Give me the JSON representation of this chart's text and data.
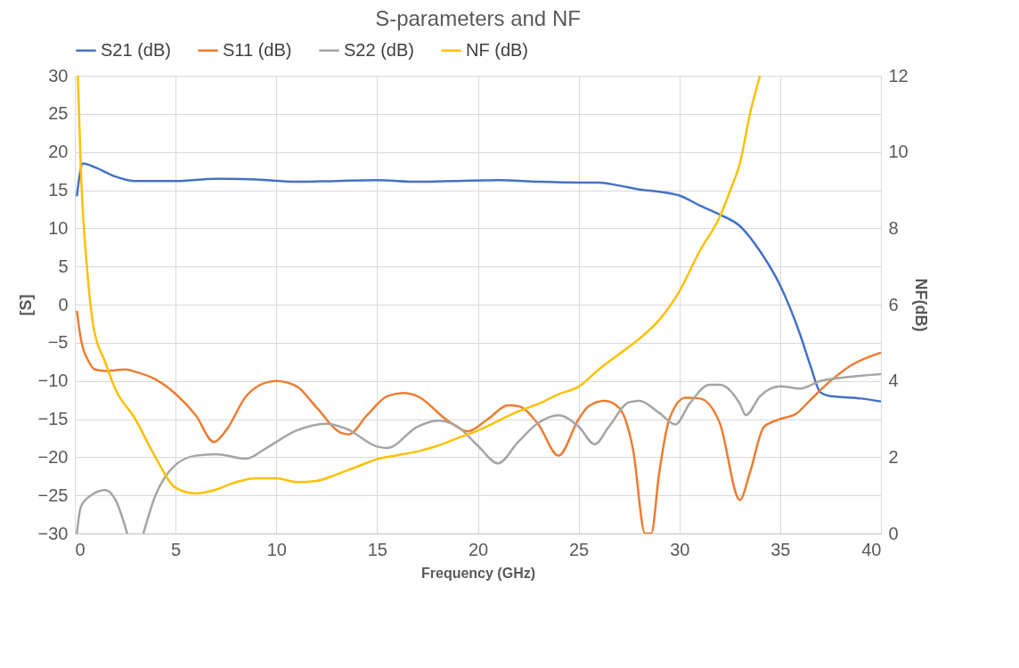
{
  "chart_data": {
    "type": "line",
    "title": "S-parameters and NF",
    "xlabel": "Frequency (GHz)",
    "ylabel": "[S]",
    "y2label": "NF(dB)",
    "xlim": [
      0,
      40
    ],
    "xticks": [
      0,
      5,
      10,
      15,
      20,
      25,
      30,
      35,
      40
    ],
    "ylim": [
      -30,
      30
    ],
    "yticks": [
      -30,
      -25,
      -20,
      -15,
      -10,
      -5,
      0,
      5,
      10,
      15,
      20,
      25,
      30
    ],
    "y2lim": [
      0,
      12
    ],
    "y2ticks": [
      0,
      2,
      4,
      6,
      8,
      10,
      12
    ],
    "grid": true,
    "legend": "top",
    "marker": "none",
    "line_style": "solid",
    "series": [
      {
        "name": "S21 (dB)",
        "color": "#4472c4",
        "x": [
          0.1,
          0.4,
          1,
          2,
          3,
          5,
          7,
          9,
          11,
          13,
          15,
          17,
          19,
          21,
          23,
          25,
          26,
          27,
          28,
          29,
          30,
          31,
          32,
          33,
          34,
          35,
          36,
          36.5,
          37,
          37.5,
          38,
          39,
          40
        ],
        "values": [
          14.2,
          18.5,
          18,
          16.8,
          16.2,
          16.2,
          16.5,
          16.4,
          16.1,
          16.2,
          16.3,
          16.1,
          16.2,
          16.3,
          16.1,
          16,
          16,
          15.6,
          15.1,
          14.8,
          14.3,
          13,
          11.8,
          10.3,
          7,
          2.5,
          -4,
          -8,
          -11.5,
          -12,
          -12.1,
          -12.3,
          -12.7
        ]
      },
      {
        "name": "S11 (dB)",
        "color": "#ed7d31",
        "x": [
          0.1,
          0.3,
          0.7,
          1,
          1.5,
          2,
          2.5,
          3,
          4,
          5,
          6,
          6.9,
          7.5,
          8.5,
          9.5,
          10,
          11,
          12,
          13.2,
          13.6,
          14.5,
          15.5,
          16.3,
          17,
          18.5,
          19.5,
          20.5,
          21.5,
          22,
          23,
          24,
          25,
          25.5,
          26.3,
          27,
          27.7,
          28.3,
          28.6,
          29,
          29.5,
          30.3,
          31,
          32,
          33,
          33.5,
          34.2,
          35,
          35.8,
          36.5,
          37.5,
          38.5,
          40
        ],
        "values": [
          -0.8,
          -4.5,
          -7.5,
          -8.5,
          -8.7,
          -8.6,
          -8.5,
          -8.8,
          -9.8,
          -11.7,
          -14.5,
          -18,
          -16.5,
          -12,
          -10.2,
          -10,
          -10.7,
          -13.5,
          -16.8,
          -17,
          -14.5,
          -12,
          -11.6,
          -12,
          -15.2,
          -16.6,
          -15,
          -13.2,
          -13.3,
          -15.7,
          -19.8,
          -15,
          -13.3,
          -12.6,
          -13.5,
          -19,
          -30,
          -30,
          -22,
          -15,
          -12.2,
          -12.3,
          -15.5,
          -25.6,
          -22,
          -16,
          -15,
          -14.3,
          -12.5,
          -10,
          -8,
          -6.3
        ]
      },
      {
        "name": "S22 (dB)",
        "color": "#a5a5a5",
        "x": [
          0.1,
          0.3,
          0.8,
          1.5,
          2,
          2.6,
          3,
          3.4,
          4,
          4.5,
          5,
          6,
          7,
          8.5,
          9.5,
          11,
          12.5,
          13.5,
          15,
          15.5,
          17,
          18,
          19,
          20,
          21,
          22,
          23,
          24,
          25,
          25.8,
          26.5,
          27.5,
          28,
          29,
          29.8,
          30.5,
          31.5,
          32,
          33,
          33.3,
          34,
          35,
          36,
          37,
          38,
          40
        ],
        "values": [
          -30,
          -26.5,
          -25,
          -24.3,
          -25.5,
          -30,
          null,
          -30,
          -25,
          -22.5,
          -21,
          -19.8,
          -19.6,
          -20.2,
          -18.8,
          -16.5,
          -15.6,
          -16.3,
          -18.6,
          -18.8,
          -16,
          -15.2,
          -16,
          -18.5,
          -20.8,
          -18,
          -15.5,
          -14.5,
          -16,
          -18.3,
          -16,
          -12.8,
          -12.6,
          -14.2,
          -15.7,
          -13,
          -10.5,
          -10.5,
          -13,
          -14.5,
          -12,
          -10.7,
          -11,
          -10,
          -9.6,
          -9.1
        ]
      },
      {
        "name": "NF (dB)",
        "color": "#ffc000",
        "axis": "y2",
        "x": [
          0.15,
          0.3,
          0.6,
          0.9,
          1.5,
          2,
          3,
          4,
          5,
          6,
          7,
          8,
          9,
          10,
          11,
          12,
          13,
          14,
          15,
          16,
          17,
          18,
          19,
          20,
          21,
          22,
          23,
          24,
          25,
          26,
          27,
          28,
          29,
          30,
          31,
          32,
          32.6,
          33,
          33.5,
          34
        ],
        "values": [
          12,
          9.5,
          7,
          5.5,
          4.5,
          3.8,
          3,
          2,
          1.2,
          1.05,
          1.15,
          1.35,
          1.45,
          1.45,
          1.35,
          1.38,
          1.55,
          1.75,
          1.95,
          2.05,
          2.15,
          2.3,
          2.5,
          2.7,
          2.95,
          3.2,
          3.4,
          3.65,
          3.85,
          4.3,
          4.7,
          5.1,
          5.6,
          6.35,
          7.4,
          8.3,
          9.1,
          9.7,
          11,
          12
        ]
      }
    ]
  }
}
